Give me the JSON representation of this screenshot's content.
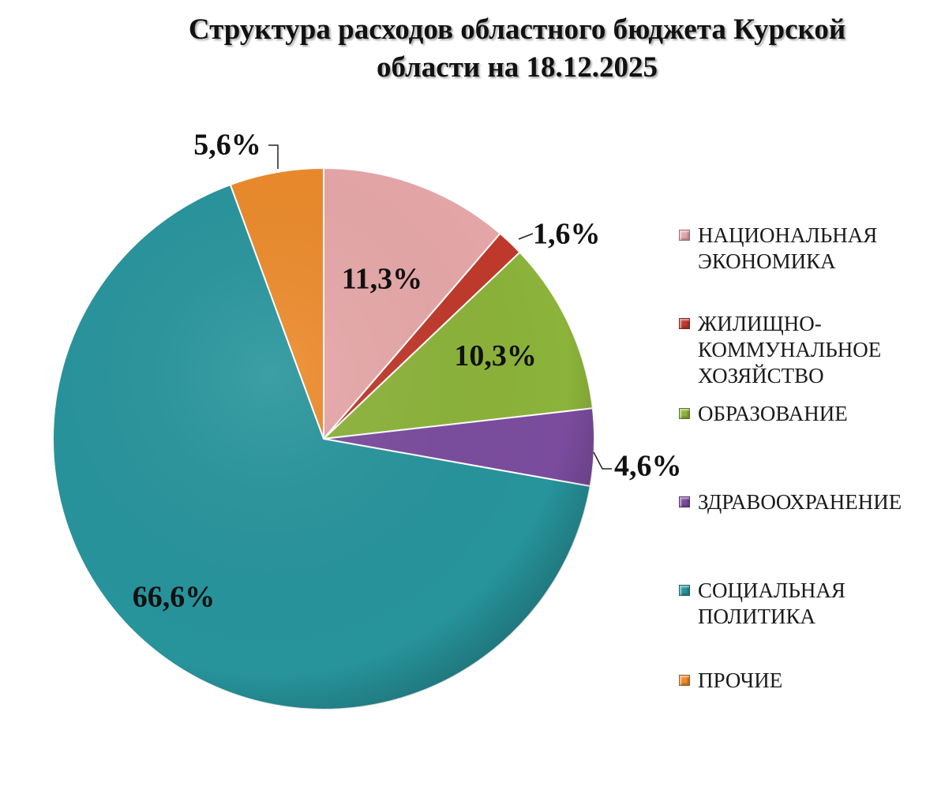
{
  "chart_data": {
    "type": "pie",
    "title_lines": [
      "Структура расходов областного бюджета Курской",
      "области на 18.12.2025"
    ],
    "categories": [
      "НАЦИОНАЛЬНАЯ ЭКОНОМИКА",
      "ЖИЛИЩНО-КОММУНАЛЬНОЕ ХОЗЯЙСТВО",
      "ОБРАЗОВАНИЕ",
      "ЗДРАВООХРАНЕНИЕ",
      "СОЦИАЛЬНАЯ ПОЛИТИКА",
      "ПРОЧИЕ"
    ],
    "legend_lines": [
      [
        "НАЦИОНАЛЬНАЯ",
        "ЭКОНОМИКА"
      ],
      [
        "ЖИЛИЩНО-",
        "КОММУНАЛЬНОЕ",
        "ХОЗЯЙСТВО"
      ],
      [
        "ОБРАЗОВАНИЕ"
      ],
      [
        "ЗДРАВООХРАНЕНИЕ"
      ],
      [
        "СОЦИАЛЬНАЯ",
        "ПОЛИТИКА"
      ],
      [
        "ПРОЧИЕ"
      ]
    ],
    "values": [
      11.3,
      1.6,
      10.3,
      4.6,
      66.6,
      5.6
    ],
    "value_labels": [
      "11,3%",
      "1,6%",
      "10,3%",
      "4,6%",
      "66,6%",
      "5,6%"
    ],
    "unit": "%",
    "colors": [
      "#e6a7a8",
      "#c0392b",
      "#8cb33a",
      "#7b4c9e",
      "#27949c",
      "#ec8a2a"
    ],
    "legend_position": "right"
  }
}
